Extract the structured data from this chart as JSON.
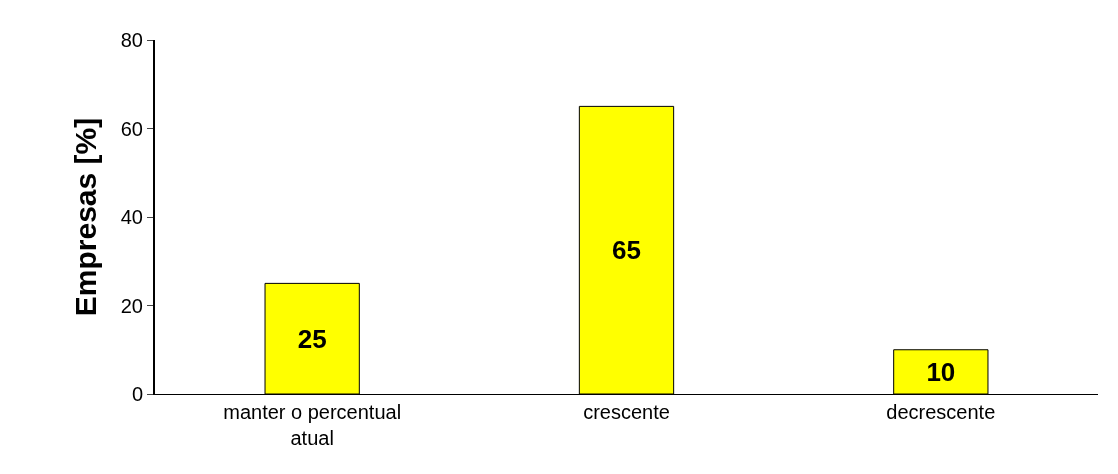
{
  "chart_data": {
    "type": "bar",
    "ylabel": "Empresas [%]",
    "categories": [
      "manter o percentual atual",
      "crescente",
      "decrescente"
    ],
    "values": [
      25,
      65,
      10
    ],
    "color": "#ffff00",
    "ylim": [
      0,
      80
    ],
    "yticks": [
      0,
      20,
      40,
      60,
      80
    ],
    "data_labels": true
  }
}
